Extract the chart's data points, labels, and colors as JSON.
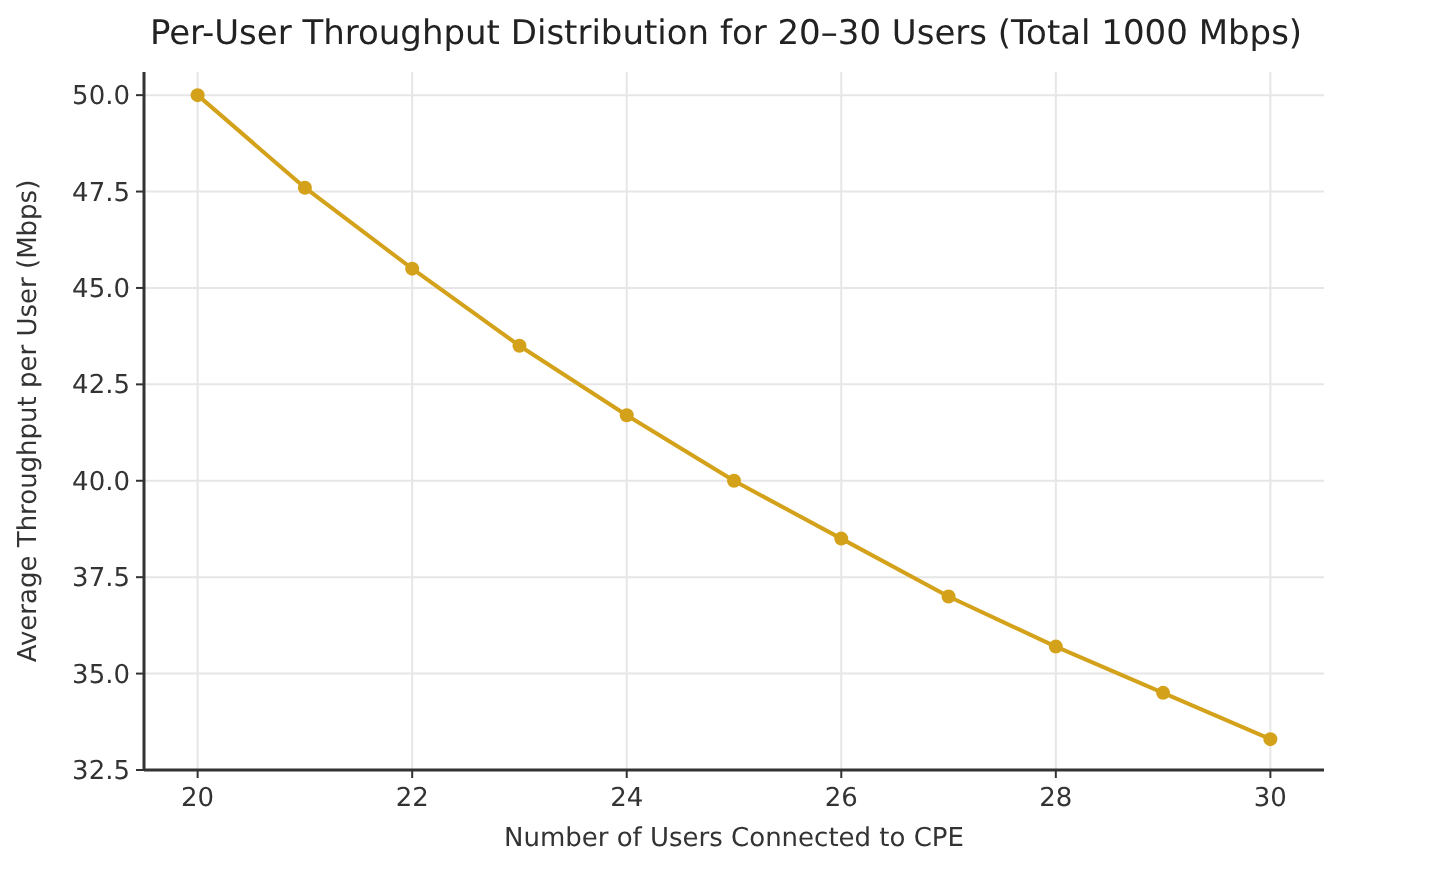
{
  "chart_data": {
    "type": "line",
    "title": "Per-User Throughput Distribution for 20–30 Users (Total 1000 Mbps)",
    "xlabel": "Number of Users Connected to CPE",
    "ylabel": "Average Throughput per User (Mbps)",
    "x": [
      20,
      21,
      22,
      23,
      24,
      25,
      26,
      27,
      28,
      29,
      30
    ],
    "series": [
      {
        "color": "#d4a21a",
        "values": [
          50.0,
          47.6,
          45.5,
          43.5,
          41.7,
          40.0,
          38.5,
          37.0,
          35.7,
          34.5,
          33.3
        ]
      }
    ],
    "xlim": [
      19.5,
      30.5
    ],
    "ylim": [
      32.5,
      50.6
    ],
    "xticks": [
      20,
      22,
      24,
      26,
      28,
      30
    ],
    "yticks": [
      {
        "value": 32.5,
        "label": "32.5"
      },
      {
        "value": 35,
        "label": "35.0"
      },
      {
        "value": 37.5,
        "label": "37.5"
      },
      {
        "value": 40,
        "label": "40.0"
      },
      {
        "value": 42.5,
        "label": "42.5"
      },
      {
        "value": 45,
        "label": "45.0"
      },
      {
        "value": 47.5,
        "label": "47.5"
      },
      {
        "value": 50,
        "label": "50.0"
      }
    ],
    "grid": true,
    "marker": "circle",
    "line_style": "solid"
  }
}
